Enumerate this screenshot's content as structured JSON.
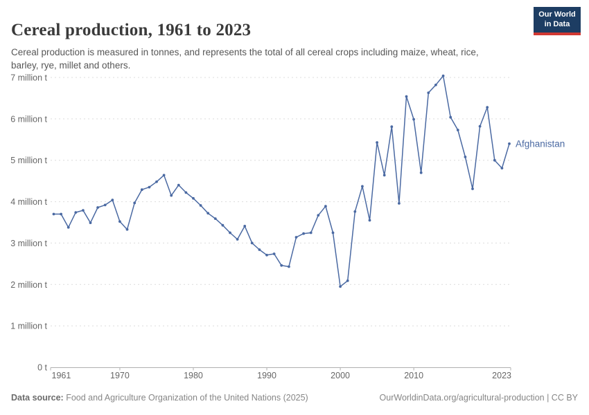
{
  "header": {
    "title": "Cereal production, 1961 to 2023",
    "subtitle": "Cereal production is measured in tonnes, and represents the total of all cereal crops including maize, wheat, rice, barley, rye, millet and others."
  },
  "logo": {
    "line1": "Our World",
    "line2": "in Data",
    "bg_color": "#1d3d63",
    "accent_color": "#d13832"
  },
  "chart_data": {
    "type": "line",
    "title": "Cereal production, 1961 to 2023",
    "unit": "tonnes",
    "x": [
      1961,
      1962,
      1963,
      1964,
      1965,
      1966,
      1967,
      1968,
      1969,
      1970,
      1971,
      1972,
      1973,
      1974,
      1975,
      1976,
      1977,
      1978,
      1979,
      1980,
      1981,
      1982,
      1983,
      1984,
      1985,
      1986,
      1987,
      1988,
      1989,
      1990,
      1991,
      1992,
      1993,
      1994,
      1995,
      1996,
      1997,
      1998,
      1999,
      2000,
      2001,
      2002,
      2003,
      2004,
      2005,
      2006,
      2007,
      2008,
      2009,
      2010,
      2011,
      2012,
      2013,
      2014,
      2015,
      2016,
      2017,
      2018,
      2019,
      2020,
      2021,
      2022,
      2023
    ],
    "series": [
      {
        "name": "Afghanistan",
        "color": "#4a69a2",
        "values_million_tonnes": [
          3.7,
          3.7,
          3.38,
          3.74,
          3.79,
          3.49,
          3.86,
          3.92,
          4.04,
          3.52,
          3.33,
          3.97,
          4.29,
          4.35,
          4.48,
          4.64,
          4.15,
          4.4,
          4.22,
          4.08,
          3.91,
          3.72,
          3.59,
          3.43,
          3.25,
          3.09,
          3.41,
          3.0,
          2.84,
          2.71,
          2.74,
          2.46,
          2.43,
          3.14,
          3.23,
          3.25,
          3.67,
          3.89,
          3.25,
          1.95,
          2.09,
          3.76,
          4.37,
          3.55,
          5.43,
          4.64,
          5.81,
          3.96,
          6.54,
          5.99,
          4.7,
          6.63,
          6.82,
          7.04,
          6.04,
          5.73,
          5.08,
          4.31,
          5.82,
          6.28,
          5.0,
          4.81,
          5.4
        ]
      }
    ],
    "ylim": [
      0,
      7
    ],
    "ytick_labels": [
      "0 t",
      "1 million t",
      "2 million t",
      "3 million t",
      "4 million t",
      "5 million t",
      "6 million t",
      "7 million t"
    ],
    "xticks": [
      1961,
      1970,
      1980,
      1990,
      2000,
      2010,
      2023
    ],
    "grid": "horizontal-dashed",
    "legend_position": "end-of-line-label"
  },
  "footer": {
    "source_label": "Data source:",
    "source_text": " Food and Agriculture Organization of the United Nations (2025)",
    "right_text": "OurWorldinData.org/agricultural-production | CC BY"
  }
}
